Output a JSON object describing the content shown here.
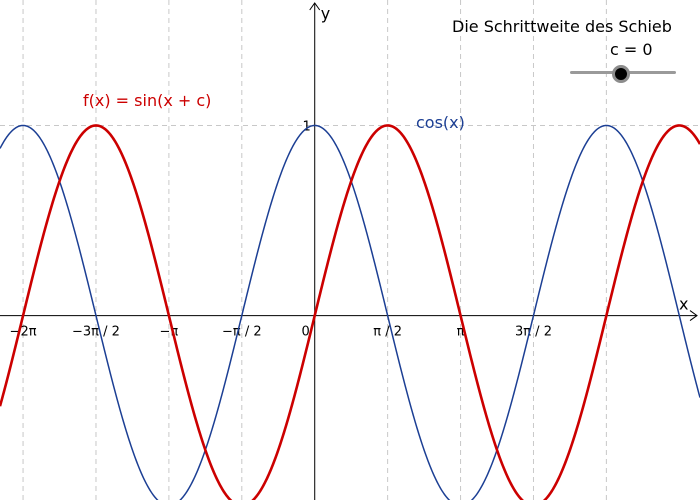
{
  "chart_data": {
    "type": "line",
    "xlabel": "x",
    "ylabel": "y",
    "xlim": [
      -6.78,
      8.3
    ],
    "ylim": [
      -0.97,
      1.66
    ],
    "grid": true,
    "x_ticks": [
      {
        "value": -6.2832,
        "label": "−2π"
      },
      {
        "value": -4.7124,
        "label": "−3π / 2"
      },
      {
        "value": -3.1416,
        "label": "−π"
      },
      {
        "value": -1.5708,
        "label": "−π / 2"
      },
      {
        "value": 0,
        "label": "0"
      },
      {
        "value": 1.5708,
        "label": "π / 2"
      },
      {
        "value": 3.1416,
        "label": "π"
      },
      {
        "value": 4.7124,
        "label": "3π / 2"
      }
    ],
    "y_ticks": [
      {
        "value": 1,
        "label": "1"
      }
    ],
    "series": [
      {
        "name": "f(x) = sin(x + c)",
        "color": "#cc0000",
        "expression": "sin(x + c)",
        "key_points": [
          {
            "x": -6.2832,
            "y": 0
          },
          {
            "x": -4.7124,
            "y": 1
          },
          {
            "x": -3.1416,
            "y": 0
          },
          {
            "x": -1.5708,
            "y": -1
          },
          {
            "x": 0,
            "y": 0
          },
          {
            "x": 1.5708,
            "y": 1
          },
          {
            "x": 3.1416,
            "y": 0
          },
          {
            "x": 4.7124,
            "y": -1
          }
        ]
      },
      {
        "name": "cos(x)",
        "color": "#1c3f94",
        "expression": "cos(x)",
        "key_points": [
          {
            "x": -6.2832,
            "y": 1
          },
          {
            "x": -4.7124,
            "y": 0
          },
          {
            "x": -3.1416,
            "y": -1
          },
          {
            "x": -1.5708,
            "y": 0
          },
          {
            "x": 0,
            "y": 1
          },
          {
            "x": 1.5708,
            "y": 0
          },
          {
            "x": 3.1416,
            "y": -1
          },
          {
            "x": 4.7124,
            "y": 0
          }
        ]
      }
    ]
  },
  "slider": {
    "caption": "Die Schrittweite des Schieb",
    "variable": "c",
    "equals": " = ",
    "value": 0,
    "value_text": "0",
    "min": -6.28,
    "max": 6.28
  },
  "colors": {
    "grid": "#c8c8c8",
    "axis": "#000000",
    "slider_track": "#9a9a9a",
    "slider_knob": "#000000"
  }
}
